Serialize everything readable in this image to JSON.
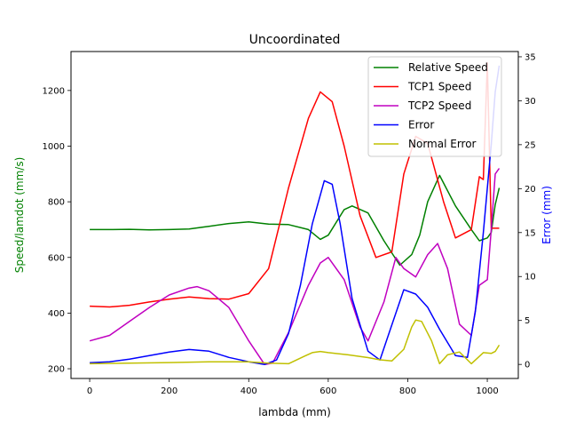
{
  "chart_data": {
    "type": "line",
    "title": "Uncoordinated",
    "xlabel": "lambda (mm)",
    "ylabel_left": "Speed/lamdot (mm/s)",
    "ylabel_right": "Error (mm)",
    "ylabel_left_color": "#008000",
    "ylabel_right_color": "#0000ff",
    "xlim": [
      -47,
      1078
    ],
    "ylim_left": [
      165,
      1340
    ],
    "ylim_right": [
      -1.6,
      35.6
    ],
    "xticks": [
      0,
      200,
      400,
      600,
      800,
      1000
    ],
    "yticks_left": [
      200,
      400,
      600,
      800,
      1000,
      1200
    ],
    "yticks_right": [
      0,
      5,
      10,
      15,
      20,
      25,
      30,
      35
    ],
    "legend_position": "upper-right",
    "series": [
      {
        "name": "Relative Speed",
        "axis": "left",
        "color": "#008000",
        "x": [
          0,
          50,
          100,
          150,
          200,
          250,
          300,
          350,
          400,
          450,
          500,
          550,
          580,
          600,
          640,
          660,
          700,
          740,
          780,
          810,
          830,
          850,
          880,
          920,
          960,
          980,
          1000,
          1010,
          1020,
          1030
        ],
        "y": [
          700,
          700,
          701,
          699,
          700,
          702,
          712,
          722,
          728,
          720,
          718,
          700,
          665,
          680,
          772,
          785,
          760,
          660,
          572,
          610,
          680,
          800,
          895,
          785,
          700,
          660,
          670,
          690,
          790,
          850
        ]
      },
      {
        "name": "TCP1 Speed",
        "axis": "left",
        "color": "#ff0000",
        "x": [
          0,
          50,
          100,
          150,
          200,
          250,
          300,
          350,
          400,
          450,
          500,
          550,
          580,
          610,
          640,
          680,
          720,
          760,
          790,
          820,
          850,
          890,
          920,
          960,
          980,
          990,
          1000,
          1010,
          1030
        ],
        "y": [
          425,
          422,
          428,
          440,
          450,
          458,
          452,
          450,
          470,
          560,
          850,
          1100,
          1195,
          1160,
          1000,
          750,
          600,
          620,
          900,
          1035,
          1010,
          800,
          670,
          700,
          890,
          880,
          1300,
          705,
          705
        ]
      },
      {
        "name": "TCP2 Speed",
        "axis": "left",
        "color": "#c000c0",
        "x": [
          0,
          50,
          100,
          150,
          200,
          250,
          270,
          300,
          350,
          400,
          440,
          460,
          500,
          550,
          580,
          600,
          640,
          680,
          700,
          740,
          770,
          790,
          820,
          850,
          875,
          900,
          930,
          960,
          980,
          1000,
          1010,
          1020,
          1030
        ],
        "y": [
          300,
          320,
          370,
          420,
          465,
          490,
          495,
          480,
          420,
          300,
          215,
          220,
          330,
          500,
          580,
          600,
          520,
          350,
          300,
          440,
          600,
          560,
          530,
          610,
          650,
          560,
          360,
          320,
          500,
          520,
          700,
          900,
          920
        ]
      },
      {
        "name": "Error",
        "axis": "right",
        "color": "#0000ff",
        "x": [
          0,
          50,
          100,
          150,
          200,
          250,
          300,
          350,
          400,
          440,
          470,
          500,
          530,
          560,
          590,
          610,
          630,
          660,
          700,
          730,
          760,
          790,
          820,
          850,
          880,
          920,
          950,
          970,
          990,
          1010,
          1020,
          1030
        ],
        "y": [
          0.2,
          0.3,
          0.6,
          1.0,
          1.4,
          1.7,
          1.5,
          0.8,
          0.3,
          0.0,
          0.5,
          3.5,
          9.0,
          16.0,
          20.9,
          20.5,
          16.0,
          7.5,
          1.5,
          0.5,
          4.5,
          8.5,
          8.0,
          6.5,
          4.0,
          1.0,
          0.8,
          6.0,
          15.0,
          25.0,
          31.0,
          34.0
        ]
      },
      {
        "name": "Normal Error",
        "axis": "left",
        "color": "#c0c000",
        "x": [
          0,
          100,
          200,
          300,
          400,
          450,
          500,
          540,
          560,
          580,
          600,
          650,
          700,
          730,
          760,
          790,
          810,
          820,
          835,
          860,
          880,
          900,
          930,
          960,
          990,
          1010,
          1020,
          1030
        ],
        "y": [
          218,
          220,
          222,
          225,
          225,
          220,
          218,
          245,
          258,
          262,
          258,
          250,
          240,
          232,
          228,
          270,
          350,
          375,
          370,
          300,
          218,
          250,
          260,
          218,
          258,
          255,
          262,
          285
        ]
      }
    ]
  }
}
